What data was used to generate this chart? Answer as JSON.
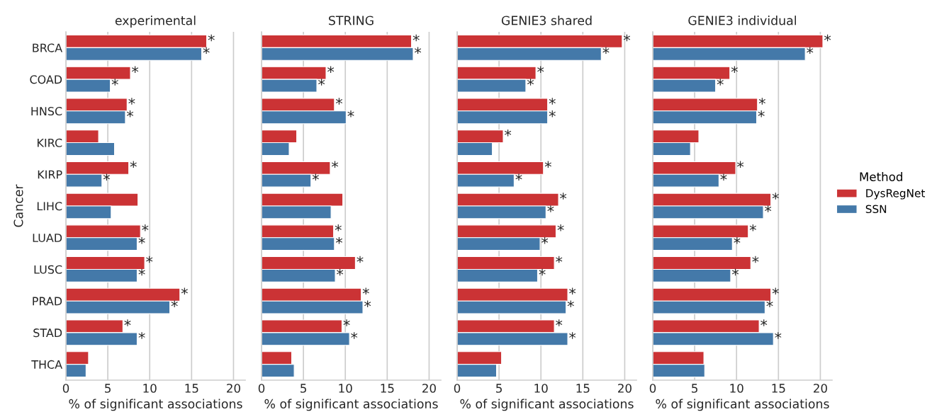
{
  "chart_data": [
    {
      "type": "bar",
      "orientation": "horizontal",
      "title": "experimental",
      "xlabel": "% of significant associations",
      "ylabel": "Cancer",
      "categories": [
        "BRCA",
        "COAD",
        "HNSC",
        "KIRC",
        "KIRP",
        "LIHC",
        "LUAD",
        "LUSC",
        "PRAD",
        "STAD",
        "THCA"
      ],
      "xlim": [
        0,
        21.4
      ],
      "xticks": [
        0,
        5,
        10,
        15,
        20
      ],
      "grid": "x",
      "legend": "right",
      "legend_title": "Method",
      "series": [
        {
          "name": "DysRegNet",
          "color": "#cb3335",
          "values": [
            16.8,
            7.7,
            7.3,
            3.9,
            7.5,
            8.6,
            8.9,
            9.4,
            13.6,
            6.8,
            2.7
          ],
          "value_labels": [
            "*",
            "*",
            "*",
            null,
            "*",
            null,
            "*",
            "*",
            "*",
            "*",
            null
          ]
        },
        {
          "name": "SSN",
          "color": "#4479a9",
          "values": [
            16.2,
            5.3,
            7.1,
            5.8,
            4.3,
            5.4,
            8.5,
            8.5,
            12.4,
            8.5,
            2.4
          ],
          "value_labels": [
            "*",
            "*",
            "*",
            null,
            "*",
            null,
            "*",
            "*",
            "*",
            "*",
            null
          ]
        }
      ]
    },
    {
      "type": "bar",
      "orientation": "horizontal",
      "title": "STRING",
      "xlabel": "% of significant associations",
      "xlim": [
        0,
        21.4
      ],
      "xticks": [
        0,
        5,
        10,
        15,
        20
      ],
      "grid": "x",
      "tick_labels": "x",
      "series": [
        {
          "color": "#cb3335",
          "values": [
            17.9,
            7.7,
            8.7,
            4.2,
            8.2,
            9.7,
            8.6,
            11.2,
            11.9,
            9.6,
            3.6
          ],
          "value_labels": [
            "*",
            "*",
            "*",
            null,
            "*",
            null,
            "*",
            "*",
            "*",
            "*",
            null
          ]
        },
        {
          "color": "#4479a9",
          "values": [
            18.1,
            6.6,
            10.1,
            3.3,
            5.9,
            8.3,
            8.7,
            8.8,
            12.1,
            10.5,
            3.9
          ],
          "value_labels": [
            "*",
            "*",
            "*",
            null,
            "*",
            null,
            "*",
            "*",
            "*",
            "*",
            null
          ]
        }
      ]
    },
    {
      "type": "bar",
      "orientation": "horizontal",
      "title": "GENIE3 shared",
      "xlabel": "% of significant associations",
      "xlim": [
        0,
        21.4
      ],
      "xticks": [
        0,
        5,
        10,
        15,
        20
      ],
      "grid": "x",
      "tick_labels": "x",
      "series": [
        {
          "color": "#cb3335",
          "values": [
            19.7,
            9.4,
            10.8,
            5.5,
            10.3,
            12.1,
            11.8,
            11.6,
            13.2,
            11.6,
            5.3
          ],
          "value_labels": [
            "*",
            "*",
            "*",
            "*",
            "*",
            "*",
            "*",
            "*",
            "*",
            "*",
            null
          ]
        },
        {
          "color": "#4479a9",
          "values": [
            17.2,
            8.2,
            10.8,
            4.2,
            6.8,
            10.6,
            9.9,
            9.6,
            13.0,
            13.2,
            4.7
          ],
          "value_labels": [
            "*",
            "*",
            "*",
            null,
            "*",
            "*",
            "*",
            "*",
            "*",
            "*",
            null
          ]
        }
      ]
    },
    {
      "type": "bar",
      "orientation": "horizontal",
      "title": "GENIE3 individual",
      "xlabel": "% of significant associations",
      "xlim": [
        0,
        21.4
      ],
      "xticks": [
        0,
        5,
        10,
        15,
        20
      ],
      "grid": "x",
      "tick_labels": "x",
      "series": [
        {
          "color": "#cb3335",
          "values": [
            20.3,
            9.2,
            12.5,
            5.5,
            9.9,
            14.1,
            11.4,
            11.7,
            14.1,
            12.7,
            6.1
          ],
          "value_labels": [
            "*",
            "*",
            "*",
            null,
            "*",
            "*",
            "*",
            "*",
            "*",
            "*",
            null
          ]
        },
        {
          "color": "#4479a9",
          "values": [
            18.2,
            7.5,
            12.4,
            4.5,
            7.9,
            13.2,
            9.5,
            9.3,
            13.4,
            14.4,
            6.2
          ],
          "value_labels": [
            "*",
            "*",
            "*",
            null,
            "*",
            "*",
            "*",
            "*",
            "*",
            "*",
            null
          ]
        }
      ]
    }
  ]
}
